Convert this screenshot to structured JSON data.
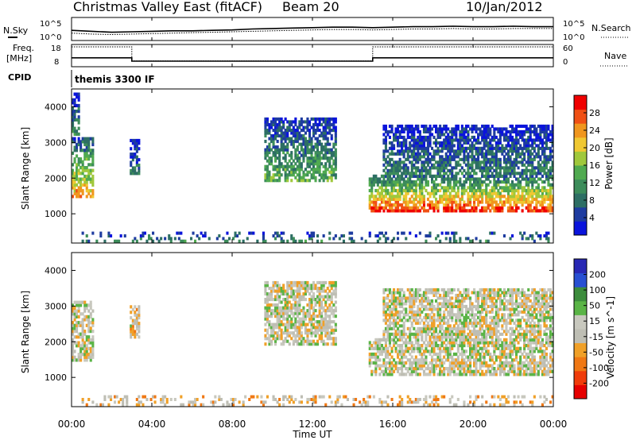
{
  "header": {
    "title": "Christmas Valley East (fitACF)",
    "beam": "Beam 20",
    "date": "10/Jan/2012"
  },
  "noise_panel": {
    "left_label": "N.Sky",
    "left_ticks": [
      "10^5",
      "10^0"
    ],
    "right_label": "N.Search",
    "right_ticks": [
      "10^5",
      "10^0"
    ]
  },
  "freq_panel": {
    "left_label": "Freq.",
    "left_unit": "[MHz]",
    "left_ticks": [
      "18",
      "8"
    ],
    "right_label": "Nave",
    "right_ticks": [
      "60",
      "0"
    ]
  },
  "cpid": {
    "label": "CPID",
    "value": "themis 3300 IF"
  },
  "time_axis": {
    "label": "Time UT",
    "ticks": [
      "00:00",
      "04:00",
      "08:00",
      "12:00",
      "16:00",
      "20:00",
      "00:00"
    ]
  },
  "colors": {
    "power": [
      "#0a14dc",
      "#1e3ca0",
      "#2d6e64",
      "#3c8c5a",
      "#50aa50",
      "#a0c83c",
      "#f0c832",
      "#f0961e",
      "#f05014",
      "#f00000"
    ],
    "velocity": [
      "#2828b4",
      "#2850d2",
      "#3c8c3c",
      "#5ab446",
      "#c8c8be",
      "#bebeb4",
      "#f0a028",
      "#f07814",
      "#f03c0a",
      "#e60000"
    ]
  },
  "chart_data": [
    {
      "type": "heatmap",
      "quantity": "Power",
      "ylabel": "Slant Range [km]",
      "y_ticks": [
        "1000",
        "2000",
        "3000",
        "4000"
      ],
      "ylim": [
        180,
        4500
      ],
      "xlim": [
        "00:00",
        "24:00"
      ],
      "colorbar_label": "Power [dB]",
      "colorbar_ticks": [
        "4",
        "8",
        "12",
        "16",
        "20",
        "24",
        "28"
      ],
      "colorbar_range": [
        0,
        30
      ],
      "regions": [
        {
          "t0": 0.0,
          "t1": 1.1,
          "r0": 1450,
          "r1": 3150,
          "level": 0.75
        },
        {
          "t0": 0.0,
          "t1": 0.4,
          "r0": 3200,
          "r1": 4400,
          "level": 0.35
        },
        {
          "t0": 2.9,
          "t1": 3.4,
          "r0": 2100,
          "r1": 3100,
          "level": 0.25
        },
        {
          "t0": 9.6,
          "t1": 13.2,
          "r0": 1900,
          "r1": 3700,
          "level": 0.45
        },
        {
          "t0": 14.8,
          "t1": 24.0,
          "r0": 1050,
          "r1": 2100,
          "level": 0.9
        },
        {
          "t0": 15.5,
          "t1": 24.0,
          "r0": 2100,
          "r1": 3500,
          "level": 0.3
        },
        {
          "t0": 0.5,
          "t1": 24.0,
          "r0": 200,
          "r1": 500,
          "level": 0.3
        }
      ]
    },
    {
      "type": "heatmap",
      "quantity": "Velocity",
      "ylabel": "Slant Range [km]",
      "y_ticks": [
        "1000",
        "2000",
        "3000",
        "4000"
      ],
      "ylim": [
        180,
        4500
      ],
      "xlim": [
        "00:00",
        "24:00"
      ],
      "colorbar_label": "Velocity [m s^-1]",
      "colorbar_ticks": [
        "200",
        "100",
        "50",
        "15",
        "-15",
        "-50",
        "-100",
        "-200"
      ],
      "colorbar_range": [
        -250,
        250
      ],
      "regions": [
        {
          "t0": 0.0,
          "t1": 1.1,
          "r0": 1450,
          "r1": 3150,
          "level": 0.5
        },
        {
          "t0": 2.9,
          "t1": 3.4,
          "r0": 2100,
          "r1": 3100,
          "level": 0.55
        },
        {
          "t0": 9.6,
          "t1": 13.2,
          "r0": 1900,
          "r1": 3700,
          "level": 0.5
        },
        {
          "t0": 14.8,
          "t1": 24.0,
          "r0": 1050,
          "r1": 2100,
          "level": 0.5
        },
        {
          "t0": 15.5,
          "t1": 24.0,
          "r0": 2100,
          "r1": 3500,
          "level": 0.5
        },
        {
          "t0": 0.5,
          "t1": 24.0,
          "r0": 200,
          "r1": 500,
          "level": 0.6
        }
      ]
    }
  ],
  "noise_series": {
    "n_sky_log": [
      2.2,
      2.0,
      1.8,
      1.9,
      2.0,
      2.1,
      2.1,
      2.2,
      2.3,
      2.5,
      2.6,
      2.7,
      2.8,
      2.9,
      2.9,
      2.8,
      2.9,
      3.0,
      3.0,
      3.1,
      3.0,
      3.0,
      3.1,
      3.0,
      3.0
    ],
    "n_search_log": [
      1.6,
      1.4,
      1.3,
      1.4,
      1.5,
      1.6,
      1.7,
      1.8,
      1.9,
      2.0,
      2.1,
      2.2,
      2.3,
      2.4,
      2.4,
      2.3,
      2.4,
      2.5,
      2.5,
      2.6,
      2.5,
      2.5,
      2.6,
      2.6,
      2.6
    ]
  },
  "freq_series": {
    "times": [
      0,
      3,
      3,
      15,
      15,
      24
    ],
    "freq_mhz": [
      12,
      12,
      10.5,
      10.5,
      12,
      12
    ],
    "nave": [
      60,
      60,
      22,
      22,
      60,
      60
    ]
  }
}
